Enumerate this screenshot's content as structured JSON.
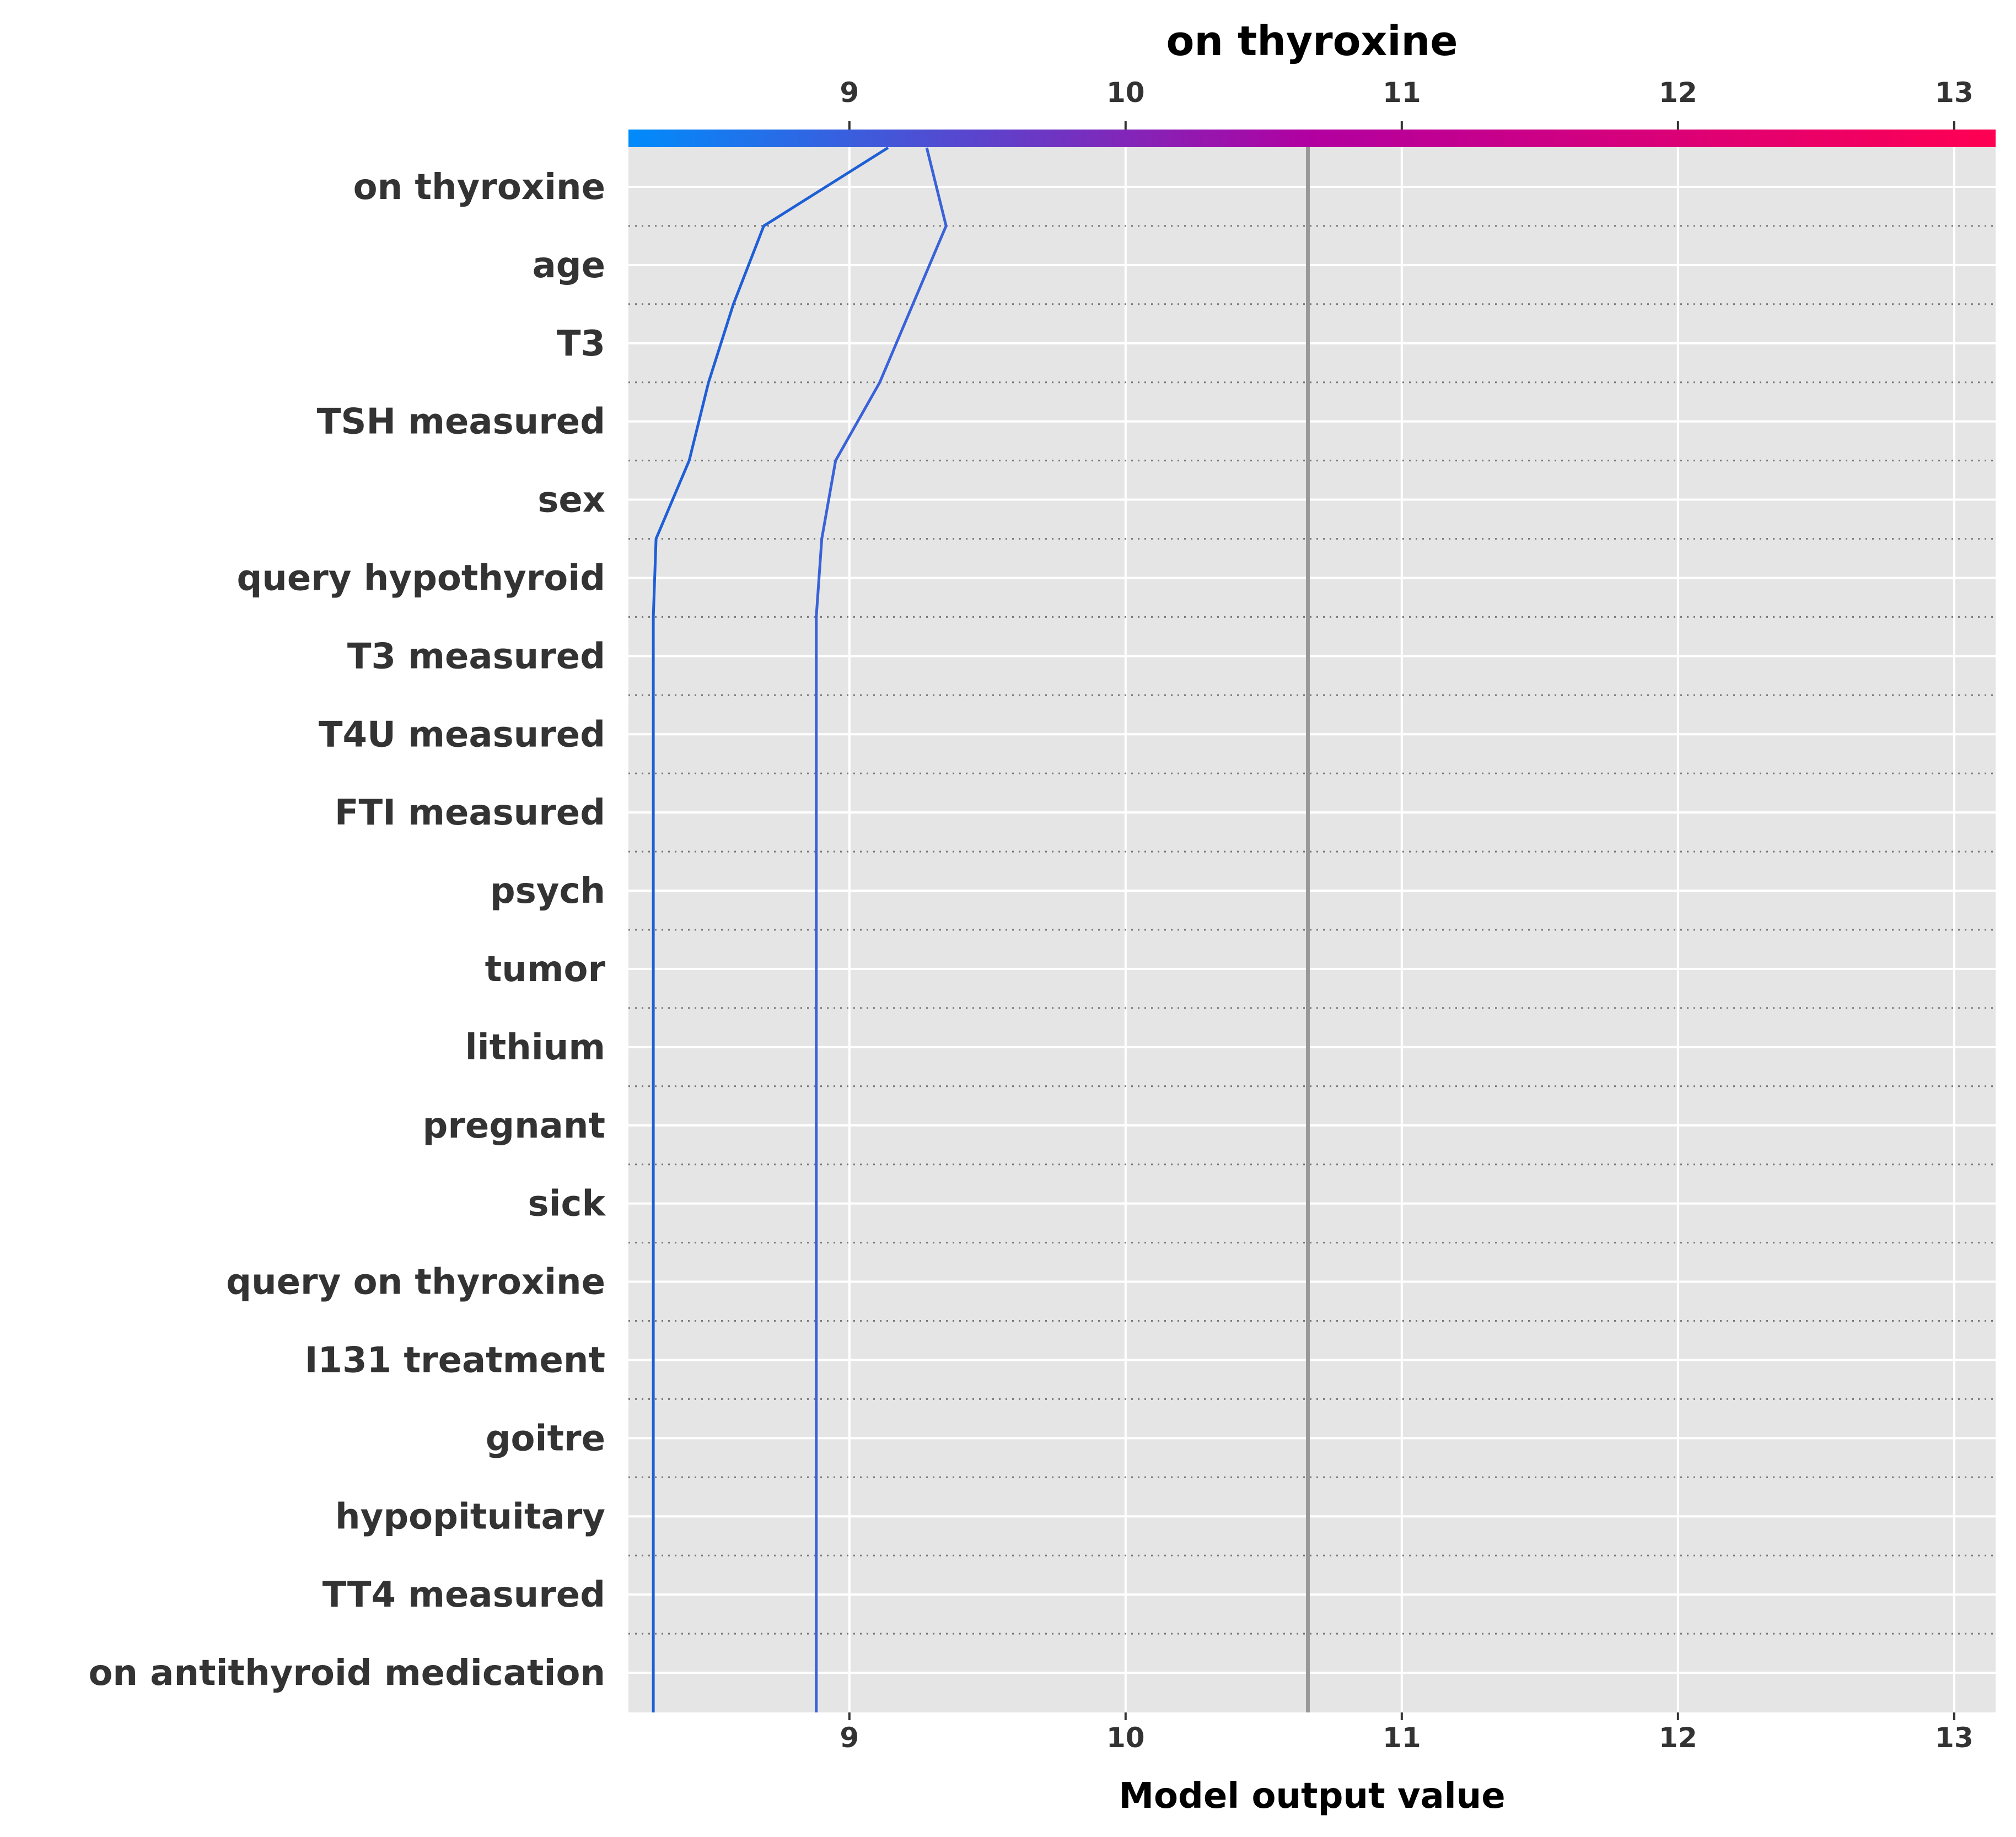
{
  "chart_data": {
    "type": "line",
    "title": "on thyroxine",
    "xlabel": "Model output value",
    "xlim": [
      8.2,
      13.15
    ],
    "xticks": [
      9,
      10,
      11,
      12,
      13
    ],
    "base_value": 10.66,
    "features": [
      "on thyroxine",
      "age",
      "T3",
      "TSH measured",
      "sex",
      "query hypothyroid",
      "T3 measured",
      "T4U measured",
      "FTI measured",
      "psych",
      "tumor",
      "lithium",
      "pregnant",
      "sick",
      "query on thyroxine",
      "I131 treatment",
      "goitre",
      "hypopituitary",
      "TT4 measured",
      "on antithyroid medication"
    ],
    "series": [
      {
        "values": [
          9.14,
          8.69,
          8.58,
          8.49,
          8.42,
          8.3,
          8.29,
          8.29,
          8.29,
          8.29,
          8.29,
          8.29,
          8.29,
          8.29,
          8.29,
          8.29,
          8.29,
          8.29,
          8.29,
          8.29,
          8.29
        ],
        "color": "#1f5fd6"
      },
      {
        "values": [
          9.28,
          9.35,
          9.23,
          9.11,
          8.95,
          8.9,
          8.88,
          8.88,
          8.88,
          8.88,
          8.88,
          8.88,
          8.88,
          8.88,
          8.88,
          8.88,
          8.88,
          8.88,
          8.88,
          8.88,
          8.88
        ],
        "color": "#3a62d8"
      }
    ],
    "colorbar": {
      "from": "#008bfb",
      "to": "#ff0052"
    },
    "grid": true
  }
}
